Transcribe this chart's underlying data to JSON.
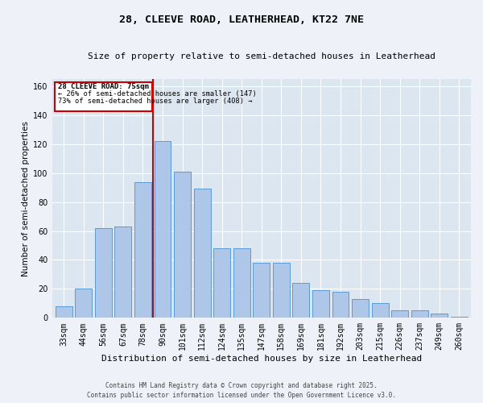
{
  "title1": "28, CLEEVE ROAD, LEATHERHEAD, KT22 7NE",
  "title2": "Size of property relative to semi-detached houses in Leatherhead",
  "xlabel": "Distribution of semi-detached houses by size in Leatherhead",
  "ylabel": "Number of semi-detached properties",
  "categories": [
    "33sqm",
    "44sqm",
    "56sqm",
    "67sqm",
    "78sqm",
    "90sqm",
    "101sqm",
    "112sqm",
    "124sqm",
    "135sqm",
    "147sqm",
    "158sqm",
    "169sqm",
    "181sqm",
    "192sqm",
    "203sqm",
    "215sqm",
    "226sqm",
    "237sqm",
    "249sqm",
    "260sqm"
  ],
  "values": [
    8,
    20,
    62,
    63,
    94,
    122,
    101,
    89,
    48,
    48,
    38,
    38,
    24,
    19,
    18,
    13,
    10,
    5,
    5,
    3,
    1
  ],
  "bar_color": "#aec6e8",
  "bar_edge_color": "#5b9bd5",
  "vline_x_index": 4.5,
  "vline_color": "#cc0000",
  "annotation_title": "28 CLEEVE ROAD: 75sqm",
  "annotation_line1": "← 26% of semi-detached houses are smaller (147)",
  "annotation_line2": "73% of semi-detached houses are larger (408) →",
  "annotation_box_color": "#cc0000",
  "ylim": [
    0,
    165
  ],
  "yticks": [
    0,
    20,
    40,
    60,
    80,
    100,
    120,
    140,
    160
  ],
  "footer1": "Contains HM Land Registry data © Crown copyright and database right 2025.",
  "footer2": "Contains public sector information licensed under the Open Government Licence v3.0.",
  "bg_color": "#eef2f8",
  "plot_bg_color": "#dce6f0",
  "title_fontsize": 9.5,
  "subtitle_fontsize": 8,
  "xlabel_fontsize": 8,
  "ylabel_fontsize": 7.5,
  "tick_fontsize": 7,
  "footer_fontsize": 5.5
}
